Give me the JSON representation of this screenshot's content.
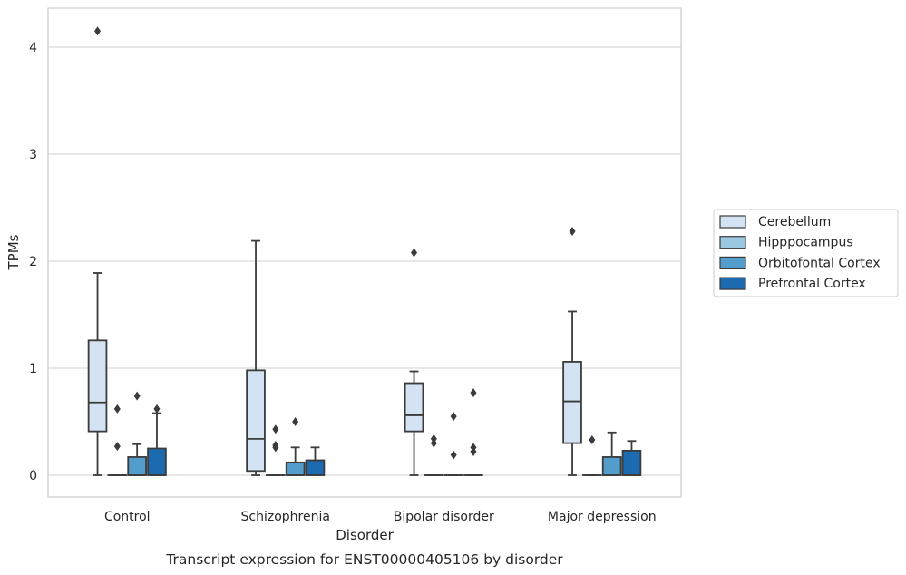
{
  "chart_data": {
    "type": "box",
    "xlabel": "Disorder",
    "ylabel": "TPMs",
    "caption": "Transcript expression for ENST00000405106 by disorder",
    "ylim": [
      -0.2,
      4.37
    ],
    "yticks": [
      "0",
      "1",
      "2",
      "3",
      "4"
    ],
    "grid": "horizontal",
    "legend_position": "right",
    "categories": [
      "Control",
      "Schizophrenia",
      "Bipolar disorder",
      "Major depression"
    ],
    "series": [
      {
        "name": "Cerebellum",
        "color": "#d3e3f3",
        "boxes": [
          {
            "whisker_low": 0.0,
            "q1": 0.41,
            "median": 0.68,
            "q3": 1.26,
            "whisker_high": 1.89,
            "outliers": [
              4.15
            ]
          },
          {
            "whisker_low": 0.0,
            "q1": 0.04,
            "median": 0.34,
            "q3": 0.98,
            "whisker_high": 2.19,
            "outliers": []
          },
          {
            "whisker_low": 0.0,
            "q1": 0.41,
            "median": 0.56,
            "q3": 0.86,
            "whisker_high": 0.97,
            "outliers": [
              2.08
            ]
          },
          {
            "whisker_low": 0.0,
            "q1": 0.3,
            "median": 0.69,
            "q3": 1.06,
            "whisker_high": 1.53,
            "outliers": [
              2.28
            ]
          }
        ]
      },
      {
        "name": "Hipppocampus",
        "color": "#9ac8e0",
        "boxes": [
          {
            "whisker_low": 0.0,
            "q1": 0.0,
            "median": 0.0,
            "q3": 0.0,
            "whisker_high": 0.0,
            "outliers": [
              0.62,
              0.27
            ]
          },
          {
            "whisker_low": 0.0,
            "q1": 0.0,
            "median": 0.0,
            "q3": 0.0,
            "whisker_high": 0.0,
            "outliers": [
              0.43,
              0.28,
              0.26
            ]
          },
          {
            "whisker_low": 0.0,
            "q1": 0.0,
            "median": 0.0,
            "q3": 0.0,
            "whisker_high": 0.0,
            "outliers": [
              0.34,
              0.3
            ]
          },
          {
            "whisker_low": 0.0,
            "q1": 0.0,
            "median": 0.0,
            "q3": 0.0,
            "whisker_high": 0.0,
            "outliers": [
              0.33
            ]
          }
        ]
      },
      {
        "name": "Orbitofontal Cortex",
        "color": "#529dcc",
        "boxes": [
          {
            "whisker_low": 0.0,
            "q1": 0.0,
            "median": 0.0,
            "q3": 0.17,
            "whisker_high": 0.29,
            "outliers": [
              0.74
            ]
          },
          {
            "whisker_low": 0.0,
            "q1": 0.0,
            "median": 0.0,
            "q3": 0.12,
            "whisker_high": 0.26,
            "outliers": [
              0.5
            ]
          },
          {
            "whisker_low": 0.0,
            "q1": 0.0,
            "median": 0.0,
            "q3": 0.0,
            "whisker_high": 0.0,
            "outliers": [
              0.55,
              0.19
            ]
          },
          {
            "whisker_low": 0.0,
            "q1": 0.0,
            "median": 0.0,
            "q3": 0.17,
            "whisker_high": 0.4,
            "outliers": []
          }
        ]
      },
      {
        "name": "Prefrontal Cortex",
        "color": "#1c6aaf",
        "boxes": [
          {
            "whisker_low": 0.0,
            "q1": 0.0,
            "median": 0.0,
            "q3": 0.25,
            "whisker_high": 0.58,
            "outliers": [
              0.62
            ]
          },
          {
            "whisker_low": 0.0,
            "q1": 0.0,
            "median": 0.0,
            "q3": 0.14,
            "whisker_high": 0.26,
            "outliers": []
          },
          {
            "whisker_low": 0.0,
            "q1": 0.0,
            "median": 0.0,
            "q3": 0.0,
            "whisker_high": 0.0,
            "outliers": [
              0.77,
              0.26,
              0.22
            ]
          },
          {
            "whisker_low": 0.0,
            "q1": 0.0,
            "median": 0.0,
            "q3": 0.23,
            "whisker_high": 0.32,
            "outliers": []
          }
        ]
      }
    ]
  }
}
